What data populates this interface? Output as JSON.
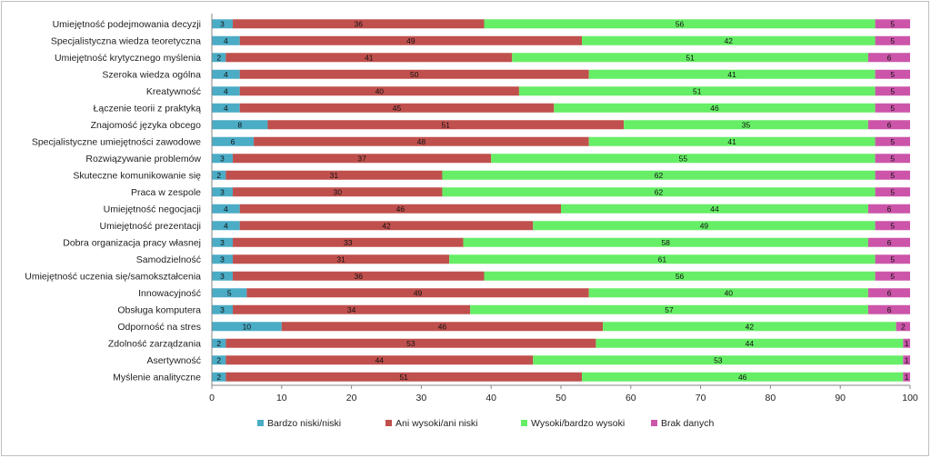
{
  "chart_data": {
    "type": "bar",
    "orientation": "horizontal",
    "stacked": true,
    "xlim": [
      0,
      100
    ],
    "x_ticks": [
      0,
      10,
      20,
      30,
      40,
      50,
      60,
      70,
      80,
      90,
      100
    ],
    "grid": false,
    "legend_position": "bottom",
    "categories": [
      "Umiejętność podejmowania decyzji",
      "Specjalistyczna wiedza teoretyczna",
      "Umiejętność krytycznego myślenia",
      "Szeroka wiedza ogólna",
      "Kreatywność",
      "Łączenie teorii z praktyką",
      "Znajomość języka obcego",
      "Specjalistyczne umiejętności zawodowe",
      "Rozwiązywanie problemów",
      "Skuteczne komunikowanie się",
      "Praca w zespole",
      "Umiejętność negocjacji",
      "Umiejętność prezentacji",
      "Dobra organizacja pracy własnej",
      "Samodzielność",
      "Umiejętność uczenia się/samokształcenia",
      "Innowacyjność",
      "Obsługa komputera",
      "Odporność na stres",
      "Zdolność zarządzania",
      "Asertywność",
      "Myślenie analityczne"
    ],
    "series": [
      {
        "name": "Bardzo niski/niski",
        "color": "#4bacc6",
        "values": [
          3,
          4,
          2,
          4,
          4,
          4,
          8,
          6,
          3,
          2,
          3,
          4,
          4,
          3,
          3,
          3,
          5,
          3,
          10,
          2,
          2,
          2
        ]
      },
      {
        "name": "Ani wysoki/ani niski",
        "color": "#c0504d",
        "values": [
          36,
          49,
          41,
          50,
          40,
          45,
          51,
          48,
          37,
          31,
          30,
          46,
          42,
          33,
          31,
          36,
          49,
          34,
          46,
          53,
          44,
          51
        ]
      },
      {
        "name": "Wysoki/bardzo wysoki",
        "color": "#66ee66",
        "values": [
          56,
          42,
          51,
          41,
          51,
          46,
          35,
          41,
          55,
          62,
          62,
          44,
          49,
          58,
          61,
          56,
          40,
          57,
          42,
          44,
          53,
          46
        ]
      },
      {
        "name": "Brak danych",
        "color": "#cc55aa",
        "values": [
          5,
          5,
          6,
          5,
          5,
          5,
          6,
          5,
          5,
          5,
          5,
          6,
          5,
          6,
          5,
          5,
          6,
          6,
          2,
          1,
          1,
          1
        ]
      }
    ]
  }
}
